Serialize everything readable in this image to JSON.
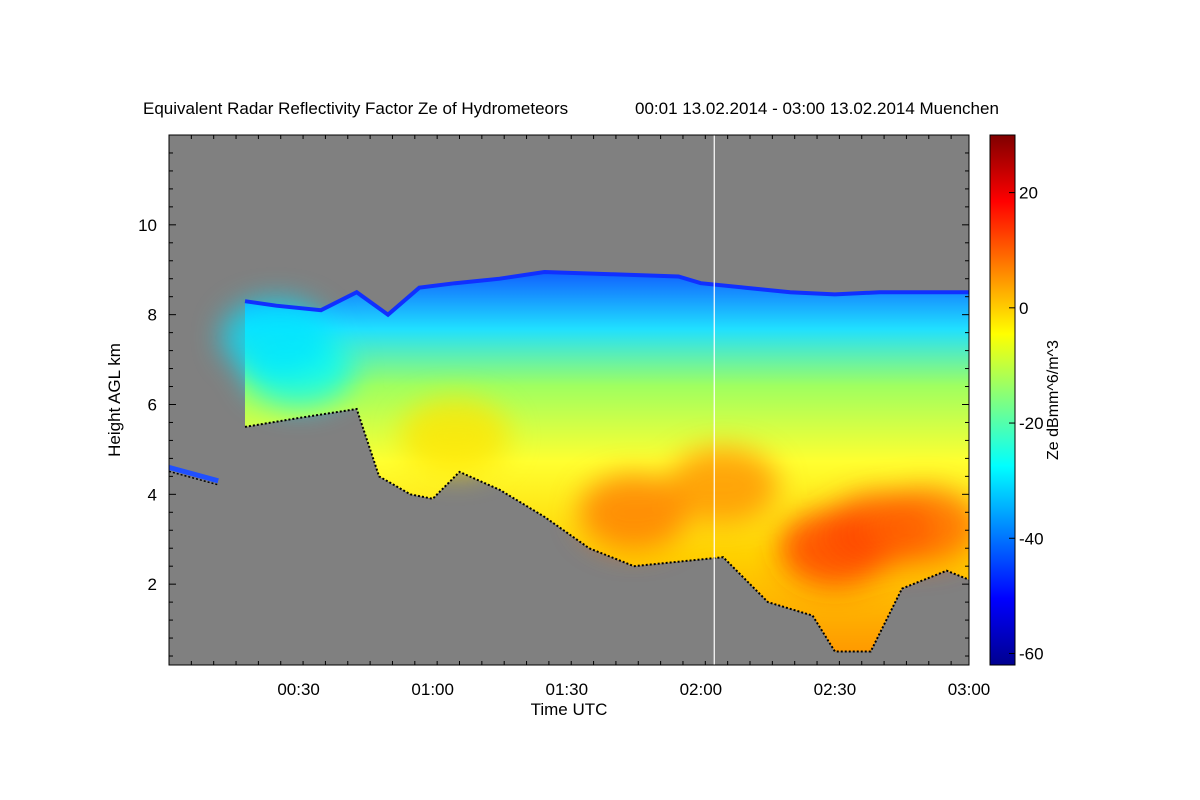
{
  "chart_data": {
    "type": "heatmap",
    "title": "Equivalent Radar Reflectivity Factor Ze of Hydrometeors",
    "period_location": "00:01 13.02.2014 - 03:00 13.02.2014 Muenchen",
    "xlabel": "Time UTC",
    "ylabel": "Height AGL km",
    "colorbar_label": "Ze dBmm^6/m^3",
    "x_ticks": [
      "00:30",
      "01:00",
      "01:30",
      "02:00",
      "02:30",
      "03:00"
    ],
    "y_ticks": [
      "2",
      "4",
      "6",
      "8",
      "10"
    ],
    "colorbar_ticks": [
      "-60",
      "-40",
      "-20",
      "0",
      "20"
    ],
    "xlim": [
      "00:01",
      "03:00"
    ],
    "ylim": [
      0.2,
      12.0
    ],
    "colorbar_range": [
      -62,
      30
    ],
    "colormap": "jet",
    "background_color": "#808080",
    "cloud_top_km": [
      [
        "00:18",
        8.3
      ],
      [
        "00:25",
        8.2
      ],
      [
        "00:35",
        8.1
      ],
      [
        "00:43",
        8.5
      ],
      [
        "00:50",
        8.0
      ],
      [
        "00:57",
        8.6
      ],
      [
        "01:05",
        8.7
      ],
      [
        "01:15",
        8.8
      ],
      [
        "01:25",
        8.95
      ],
      [
        "01:40",
        8.9
      ],
      [
        "01:55",
        8.85
      ],
      [
        "02:00",
        8.7
      ],
      [
        "02:10",
        8.6
      ],
      [
        "02:20",
        8.5
      ],
      [
        "02:30",
        8.45
      ],
      [
        "02:40",
        8.5
      ],
      [
        "02:50",
        8.5
      ],
      [
        "03:00",
        8.5
      ]
    ],
    "cloud_base_km": [
      [
        "00:18",
        5.5
      ],
      [
        "00:30",
        5.7
      ],
      [
        "00:43",
        5.9
      ],
      [
        "00:48",
        4.4
      ],
      [
        "00:55",
        4.0
      ],
      [
        "01:00",
        3.9
      ],
      [
        "01:06",
        4.5
      ],
      [
        "01:15",
        4.1
      ],
      [
        "01:25",
        3.5
      ],
      [
        "01:35",
        2.8
      ],
      [
        "01:45",
        2.4
      ],
      [
        "01:55",
        2.5
      ],
      [
        "02:05",
        2.6
      ],
      [
        "02:15",
        1.6
      ],
      [
        "02:25",
        1.3
      ],
      [
        "02:30",
        0.5
      ],
      [
        "02:38",
        0.5
      ],
      [
        "02:45",
        1.9
      ],
      [
        "02:55",
        2.3
      ],
      [
        "03:00",
        2.1
      ]
    ],
    "low_layer_km": [
      [
        "00:01",
        4.6
      ],
      [
        "00:12",
        4.3
      ]
    ],
    "core_reflectivity_dbz": [
      [
        "01:45",
        3.6,
        8
      ],
      [
        "02:05",
        4.2,
        6
      ],
      [
        "02:30",
        2.8,
        14
      ],
      [
        "02:40",
        3.2,
        12
      ],
      [
        "02:50",
        3.3,
        10
      ],
      [
        "01:05",
        5.3,
        -2
      ],
      [
        "00:30",
        6.8,
        -28
      ],
      [
        "00:25",
        7.5,
        -30
      ]
    ],
    "marker_time": "02:03"
  }
}
